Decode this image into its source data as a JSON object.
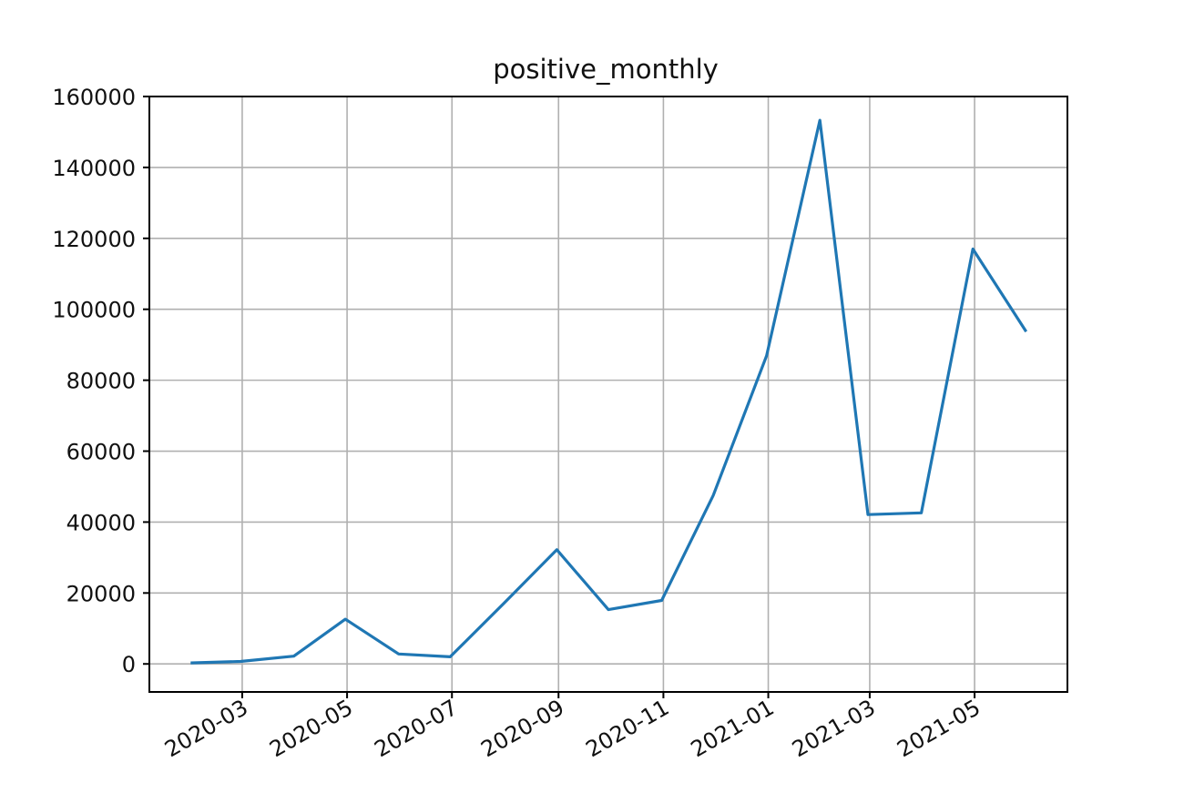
{
  "chart_data": {
    "type": "line",
    "title": "positive_monthly",
    "xlabel": "",
    "ylabel": "",
    "x": [
      "2020-01-31",
      "2020-02-29",
      "2020-03-31",
      "2020-04-30",
      "2020-05-31",
      "2020-06-30",
      "2020-07-31",
      "2020-08-31",
      "2020-09-30",
      "2020-10-31",
      "2020-11-30",
      "2020-12-31",
      "2021-01-31",
      "2021-02-28",
      "2021-03-31",
      "2021-04-30",
      "2021-05-31"
    ],
    "series": [
      {
        "values": [
          300,
          700,
          2200,
          12600,
          2800,
          2000,
          17000,
          32200,
          15300,
          17900,
          47500,
          86900,
          153300,
          42100,
          42600,
          117000,
          93700
        ],
        "color": "#1f77b4"
      }
    ],
    "xlim": [
      "2020-01-07",
      "2021-06-24"
    ],
    "ylim": [
      -7900,
      160000
    ],
    "xticks": [
      "2020-03",
      "2020-05",
      "2020-07",
      "2020-09",
      "2020-11",
      "2021-01",
      "2021-03",
      "2021-05"
    ],
    "yticks": [
      0,
      20000,
      40000,
      60000,
      80000,
      100000,
      120000,
      140000,
      160000
    ],
    "grid": true,
    "legend": "none"
  }
}
